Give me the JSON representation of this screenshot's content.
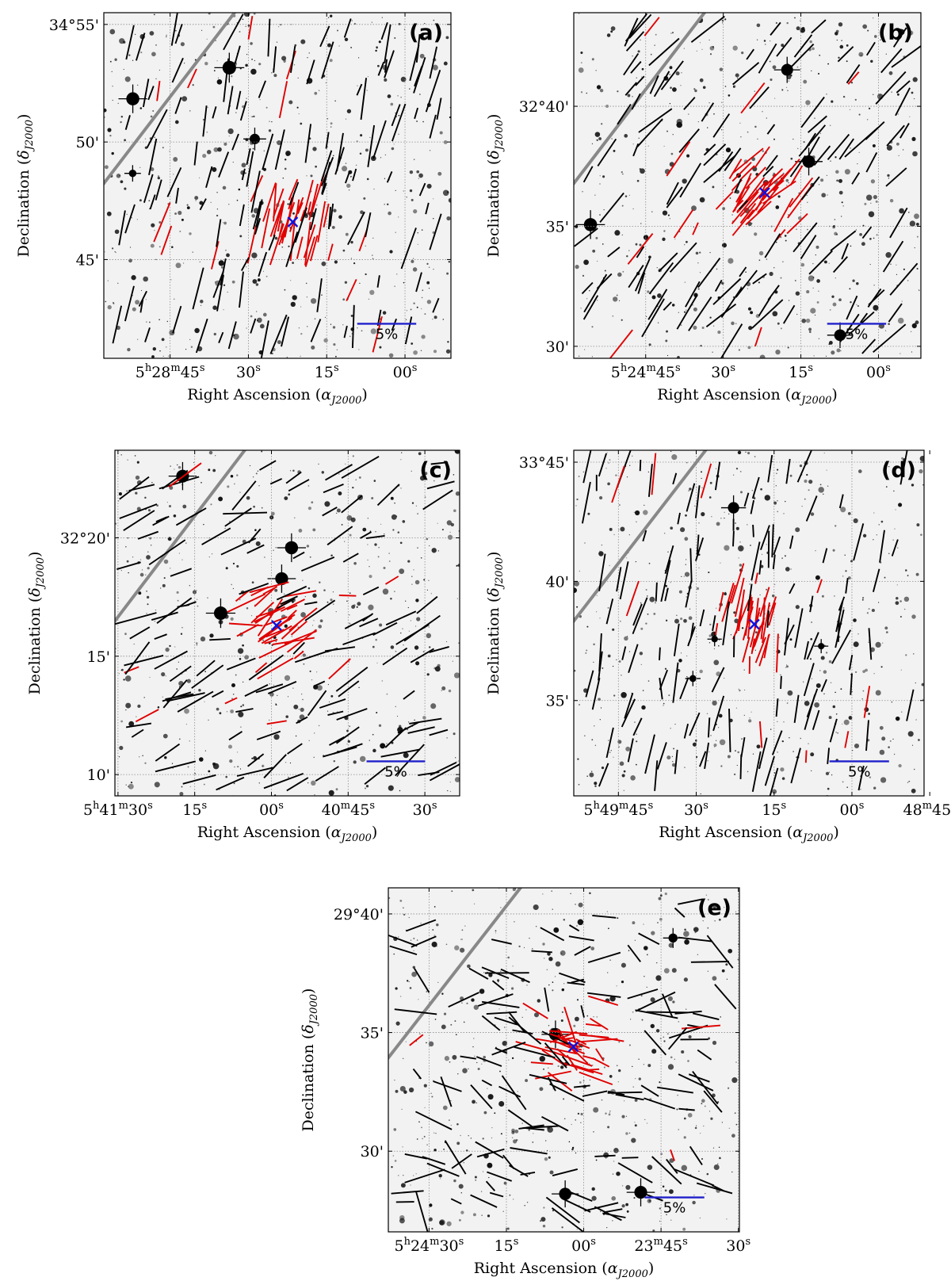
{
  "figure": {
    "colors": {
      "background": "#f2f2f2",
      "star": "#101010",
      "bright_star": "#000000",
      "grid": "#8c8c8c",
      "galactic_plane": "#888888",
      "vector_default": "#000000",
      "vector_highlight": "#e00000",
      "center_marker": "#1010dd",
      "scale_bar": "#2020cc"
    },
    "icons": {
      "center_marker": "blue-x-icon",
      "galactic_plane": "gray-diagonal-line",
      "scale_bar": "blue-scale-bar"
    }
  },
  "chart_data": [
    {
      "type": "scatter",
      "panel": "(a)",
      "xlabel": "Right Ascension (α_J2000)",
      "ylabel": "Declination (δ_J2000)",
      "x_ticks": [
        {
          "label": "5h28m45s",
          "sec": 45
        },
        {
          "label": "30s",
          "sec": 30
        },
        {
          "label": "15s",
          "sec": 15
        },
        {
          "label": "00s",
          "sec": 0
        }
      ],
      "y_ticks": [
        {
          "label": "34°55'",
          "arcmin": 55
        },
        {
          "label": "50'",
          "arcmin": 50
        },
        {
          "label": "45'",
          "arcmin": 45
        }
      ],
      "xlim_sec": [
        57.7,
        -8.8
      ],
      "ylim_arcmin": [
        40.8,
        55.5
      ],
      "center": {
        "sec": 21.5,
        "arcmin": 46.6
      },
      "pa_mean_deg": 15,
      "pa_spread_deg": 10,
      "scale_bar_label": "5%",
      "grid": true
    },
    {
      "type": "scatter",
      "panel": "(b)",
      "xlabel": "Right Ascension (α_J2000)",
      "ylabel": "Declination (δ_J2000)",
      "x_ticks": [
        {
          "label": "5h24m45s",
          "sec": 45
        },
        {
          "label": "30s",
          "sec": 30
        },
        {
          "label": "15s",
          "sec": 15
        },
        {
          "label": "00s",
          "sec": 0
        }
      ],
      "y_ticks": [
        {
          "label": "32°40'",
          "arcmin": 40
        },
        {
          "label": "35'",
          "arcmin": 35
        },
        {
          "label": "30'",
          "arcmin": 30
        }
      ],
      "xlim_sec": [
        58.9,
        -8.2
      ],
      "ylim_arcmin": [
        29.5,
        43.9
      ],
      "center": {
        "sec": 22.0,
        "arcmin": 36.4
      },
      "pa_mean_deg": 38,
      "pa_spread_deg": 14,
      "scale_bar_label": "5%",
      "grid": true
    },
    {
      "type": "scatter",
      "panel": "(c)",
      "xlabel": "Right Ascension (α_J2000)",
      "ylabel": "Declination (δ_J2000)",
      "x_ticks": [
        {
          "label": "5h41m30s",
          "sec": 90
        },
        {
          "label": "15s",
          "sec": 75
        },
        {
          "label": "00s",
          "sec": 60
        },
        {
          "label": "40m45s",
          "sec": 45
        },
        {
          "label": "30s",
          "sec": 30
        }
      ],
      "y_ticks": [
        {
          "label": "32°20'",
          "arcmin": 20
        },
        {
          "label": "15'",
          "arcmin": 15
        },
        {
          "label": "10'",
          "arcmin": 10
        }
      ],
      "xlim_sec": [
        90.6,
        23.2
      ],
      "ylim_arcmin": [
        9.1,
        23.7
      ],
      "center": {
        "sec": 59.0,
        "arcmin": 16.3
      },
      "pa_mean_deg": 65,
      "pa_spread_deg": 20,
      "scale_bar_label": "5%",
      "grid": true
    },
    {
      "type": "scatter",
      "panel": "(d)",
      "xlabel": "Right Ascension (α_J2000)",
      "ylabel": "Declination (δ_J2000)",
      "x_ticks": [
        {
          "label": "5h49m45s",
          "sec": 105
        },
        {
          "label": "30s",
          "sec": 90
        },
        {
          "label": "15s",
          "sec": 75
        },
        {
          "label": "00s",
          "sec": 60
        },
        {
          "label": "48m45s",
          "sec": 45
        }
      ],
      "y_ticks": [
        {
          "label": "33°45'",
          "arcmin": 45
        },
        {
          "label": "40'",
          "arcmin": 40
        },
        {
          "label": "35'",
          "arcmin": 35
        }
      ],
      "xlim_sec": [
        113.6,
        46.1
      ],
      "ylim_arcmin": [
        31.0,
        45.5
      ],
      "center": {
        "sec": 78.8,
        "arcmin": 38.2
      },
      "pa_mean_deg": 12,
      "pa_spread_deg": 12,
      "scale_bar_label": "5%",
      "grid": true
    },
    {
      "type": "scatter",
      "panel": "(e)",
      "xlabel": "Right Ascension (α_J2000)",
      "ylabel": "Declination (δ_J2000)",
      "x_ticks": [
        {
          "label": "5h24m30s",
          "sec": 90
        },
        {
          "label": "15s",
          "sec": 75
        },
        {
          "label": "00s",
          "sec": 60
        },
        {
          "label": "23m45s",
          "sec": 45
        },
        {
          "label": "30s",
          "sec": 30
        }
      ],
      "y_ticks": [
        {
          "label": "29°40'",
          "arcmin": 40
        },
        {
          "label": "35'",
          "arcmin": 35
        },
        {
          "label": "30'",
          "arcmin": 30
        }
      ],
      "xlim_sec": [
        97.9,
        29.8
      ],
      "ylim_arcmin": [
        26.6,
        41.1
      ],
      "center": {
        "sec": 62.0,
        "arcmin": 34.4
      },
      "pa_mean_deg": 110,
      "pa_spread_deg": 45,
      "scale_bar_label": "5%",
      "grid": true
    }
  ]
}
